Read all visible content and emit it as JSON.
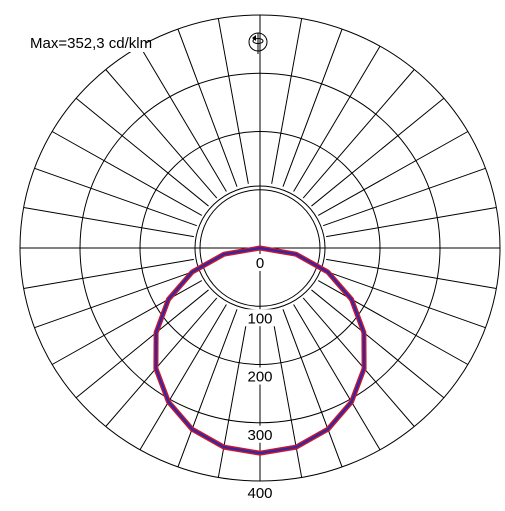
{
  "max_label": "Max=352,3 cd/klm",
  "radial_labels": [
    "0",
    "100",
    "200",
    "300",
    "400"
  ],
  "chart_data": {
    "type": "polar",
    "title": "",
    "unit": "cd/klm",
    "max_value": 352.3,
    "radial_ticks": [
      0,
      100,
      200,
      300,
      400
    ],
    "grid": true,
    "angular_step_deg": 10,
    "series": [
      {
        "angles_deg": [
          -90,
          -80,
          -70,
          -60,
          -50,
          -40,
          -30,
          -20,
          -10,
          0,
          10,
          20,
          30,
          40,
          50,
          60,
          70,
          80,
          90
        ],
        "values": [
          0,
          61,
          120,
          176,
          226,
          270,
          305,
          331,
          347,
          352.3,
          347,
          331,
          305,
          270,
          226,
          176,
          120,
          61,
          0
        ]
      }
    ],
    "colors": {
      "curve_outer": "#d0142a",
      "curve_inner": "#2b2aa8",
      "grid": "#000000"
    }
  },
  "icon": "rotation-symbol-icon"
}
